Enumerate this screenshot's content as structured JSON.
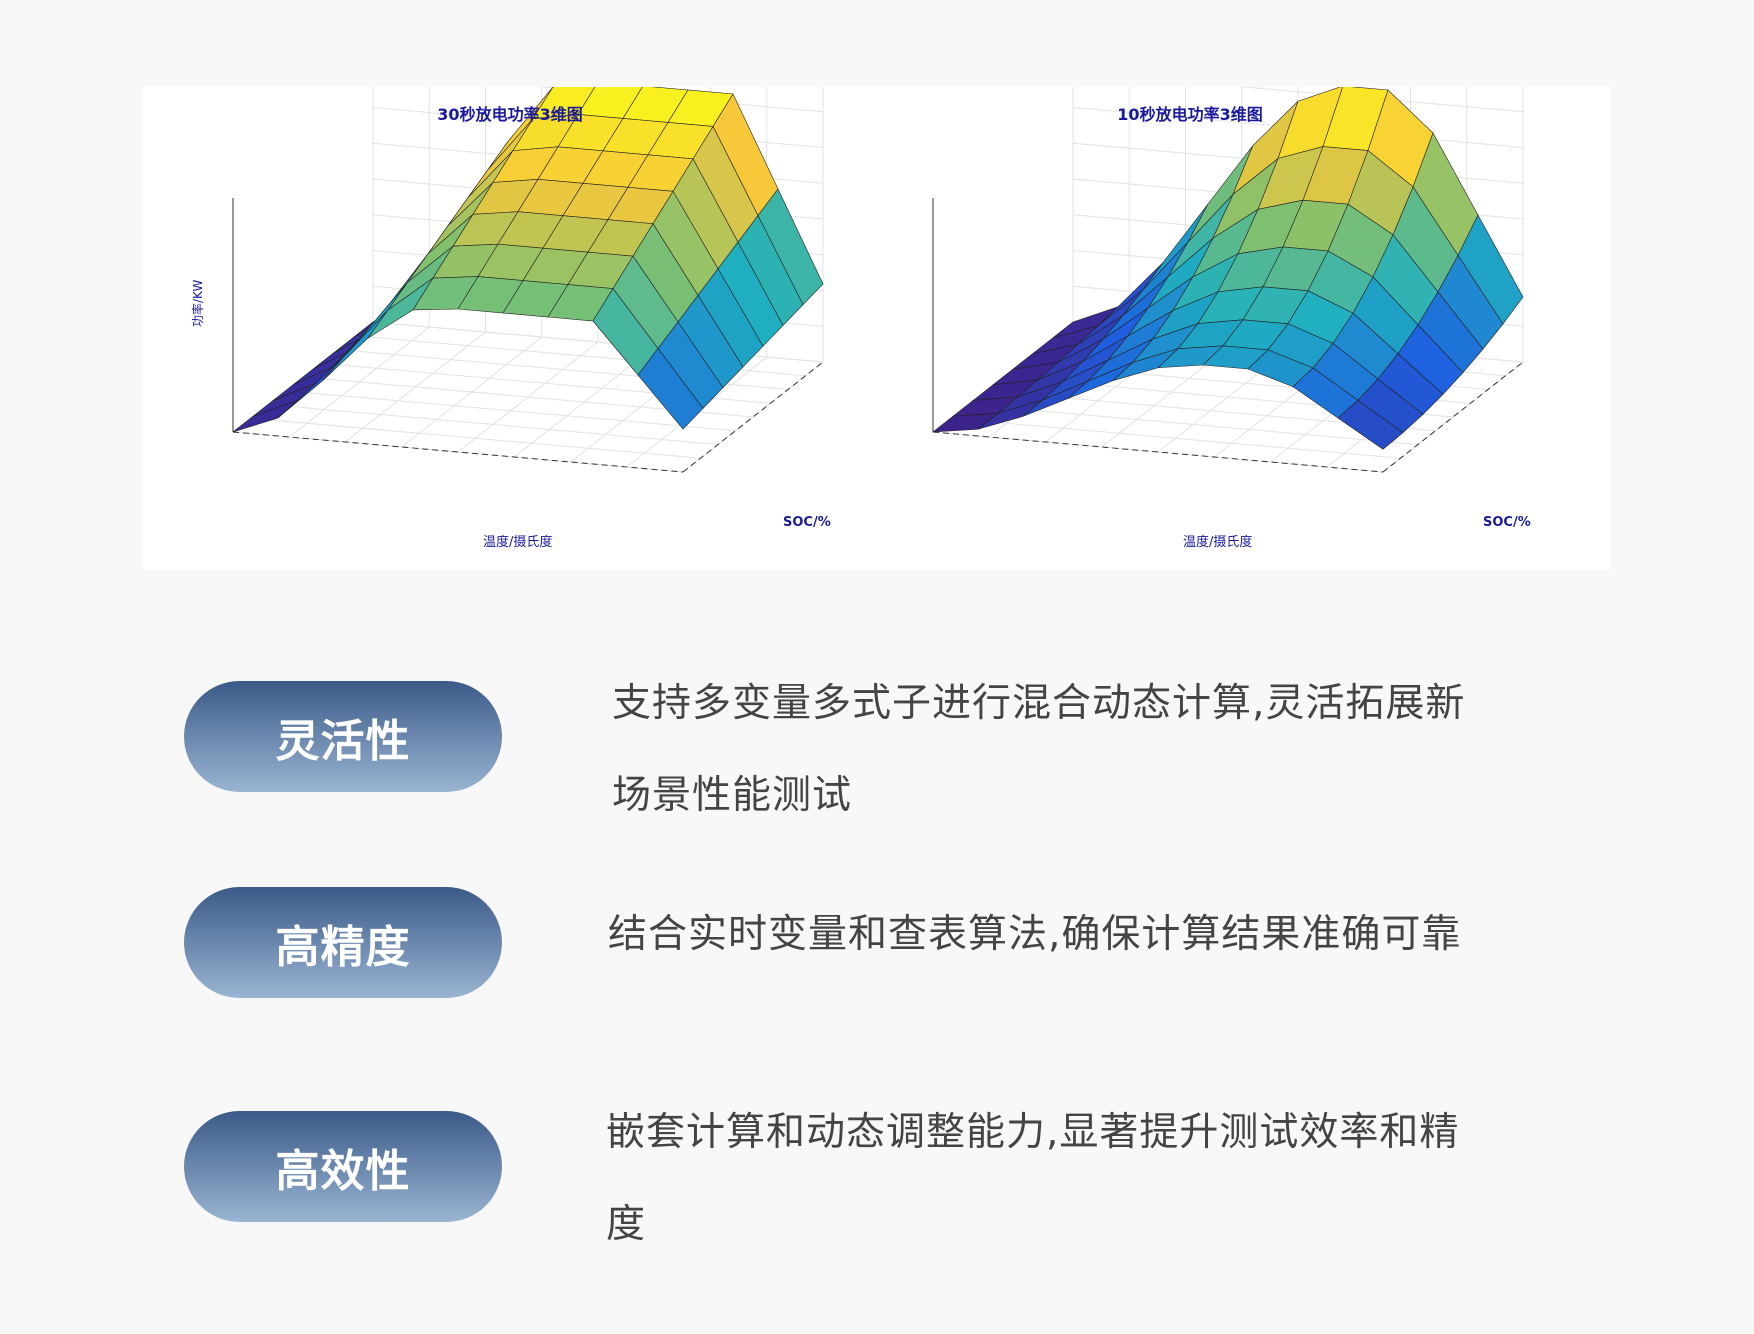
{
  "chart_data": [
    {
      "type": "surface",
      "title": "30秒放电功率3维图",
      "xlabel": "温度/摄氏度",
      "ylabel": "SOC/%",
      "zlabel": "功率/KW",
      "grid": true
    },
    {
      "type": "surface",
      "title": "10秒放电功率3维图",
      "xlabel": "温度/摄氏度",
      "ylabel": "SOC/%",
      "grid": true
    }
  ],
  "colormap": [
    "#3e1f86",
    "#1e5fe0",
    "#1fb0c0",
    "#7fc070",
    "#f8c83a",
    "#f9f91a"
  ],
  "features": [
    {
      "label": "灵活性",
      "lines": [
        "支持多变量多式子进行混合动态计算,灵活拓展新",
        "场景性能测试"
      ]
    },
    {
      "label": "高精度",
      "lines": [
        "结合实时变量和查表算法,确保计算结果准确可靠"
      ]
    },
    {
      "label": "高效性",
      "lines": [
        "嵌套计算和动态调整能力,显著提升测试效率和精",
        "度"
      ]
    }
  ]
}
